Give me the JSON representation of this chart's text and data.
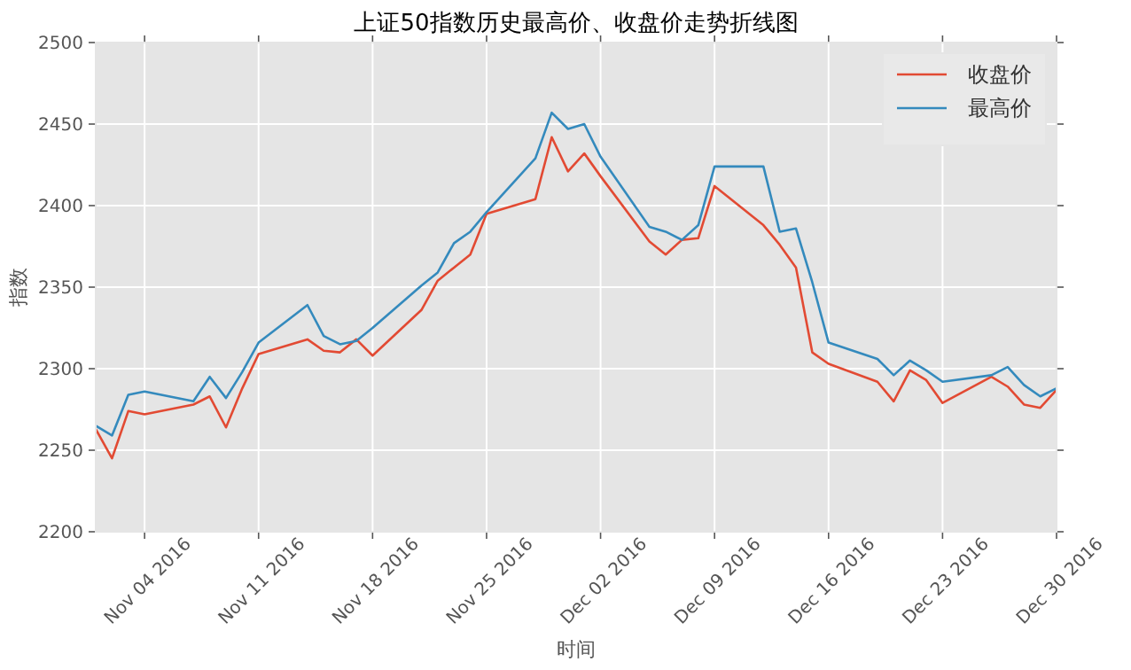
{
  "chart_data": {
    "type": "line",
    "title": "上证50指数历史最高价、收盘价走势折线图",
    "xlabel": "时间",
    "ylabel": "指数",
    "x": [
      "2016-11-01",
      "2016-11-02",
      "2016-11-03",
      "2016-11-04",
      "2016-11-07",
      "2016-11-08",
      "2016-11-09",
      "2016-11-10",
      "2016-11-11",
      "2016-11-14",
      "2016-11-15",
      "2016-11-16",
      "2016-11-17",
      "2016-11-18",
      "2016-11-21",
      "2016-11-22",
      "2016-11-23",
      "2016-11-24",
      "2016-11-25",
      "2016-11-28",
      "2016-11-29",
      "2016-11-30",
      "2016-12-01",
      "2016-12-02",
      "2016-12-05",
      "2016-12-06",
      "2016-12-07",
      "2016-12-08",
      "2016-12-09",
      "2016-12-12",
      "2016-12-13",
      "2016-12-14",
      "2016-12-15",
      "2016-12-16",
      "2016-12-19",
      "2016-12-20",
      "2016-12-21",
      "2016-12-22",
      "2016-12-23",
      "2016-12-26",
      "2016-12-27",
      "2016-12-28",
      "2016-12-29",
      "2016-12-30"
    ],
    "series": [
      {
        "name": "收盘价",
        "color": "#e24a33",
        "values": [
          2263,
          2245,
          2274,
          2272,
          2278,
          2283,
          2264,
          2288,
          2309,
          2318,
          2311,
          2310,
          2318,
          2308,
          2336,
          2354,
          2362,
          2370,
          2395,
          2404,
          2442,
          2421,
          2432,
          2418,
          2378,
          2370,
          2379,
          2380,
          2412,
          2388,
          2376,
          2362,
          2310,
          2303,
          2292,
          2280,
          2299,
          2293,
          2279,
          2295,
          2289,
          2278,
          2276,
          2287
        ]
      },
      {
        "name": "最高价",
        "color": "#348abd",
        "values": [
          2265,
          2259,
          2284,
          2286,
          2280,
          2295,
          2282,
          2298,
          2316,
          2339,
          2320,
          2315,
          2317,
          2325,
          2351,
          2359,
          2377,
          2384,
          2396,
          2429,
          2457,
          2447,
          2450,
          2430,
          2387,
          2384,
          2379,
          2388,
          2424,
          2424,
          2384,
          2386,
          2353,
          2316,
          2306,
          2296,
          2305,
          2299,
          2292,
          2296,
          2301,
          2290,
          2283,
          2288
        ]
      }
    ],
    "xlim": [
      "2016-11-01",
      "2016-12-30"
    ],
    "xticks": [
      {
        "value": "2016-11-04",
        "label": "Nov 04 2016"
      },
      {
        "value": "2016-11-11",
        "label": "Nov 11 2016"
      },
      {
        "value": "2016-11-18",
        "label": "Nov 18 2016"
      },
      {
        "value": "2016-11-25",
        "label": "Nov 25 2016"
      },
      {
        "value": "2016-12-02",
        "label": "Dec 02 2016"
      },
      {
        "value": "2016-12-09",
        "label": "Dec 09 2016"
      },
      {
        "value": "2016-12-16",
        "label": "Dec 16 2016"
      },
      {
        "value": "2016-12-23",
        "label": "Dec 23 2016"
      },
      {
        "value": "2016-12-30",
        "label": "Dec 30 2016"
      }
    ],
    "ylim": [
      2200,
      2500
    ],
    "yticks": [
      2200,
      2250,
      2300,
      2350,
      2400,
      2450,
      2500
    ],
    "grid": true,
    "legend": "top right",
    "line_style": "solid",
    "marker": "none"
  }
}
